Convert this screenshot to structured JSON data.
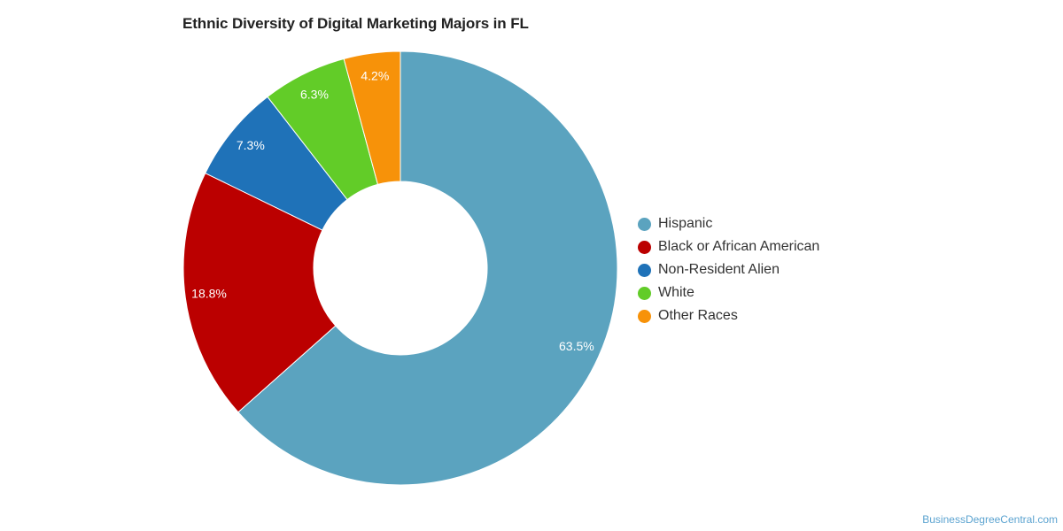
{
  "chart_data": {
    "type": "pie",
    "variant": "donut",
    "title": "Ethnic Diversity of Digital Marketing Majors in FL",
    "categories": [
      "Hispanic",
      "Black or African American",
      "Non-Resident Alien",
      "White",
      "Other Races"
    ],
    "values": [
      63.5,
      18.8,
      7.3,
      6.3,
      4.2
    ],
    "value_labels": [
      "63.5%",
      "18.8%",
      "7.3%",
      "6.3%",
      "4.2%"
    ],
    "colors": [
      "#5ba3bf",
      "#bb0000",
      "#1f72b8",
      "#62cc28",
      "#f79209"
    ],
    "legend_position": "right",
    "unit": "%"
  },
  "credit": "BusinessDegreeCentral.com"
}
